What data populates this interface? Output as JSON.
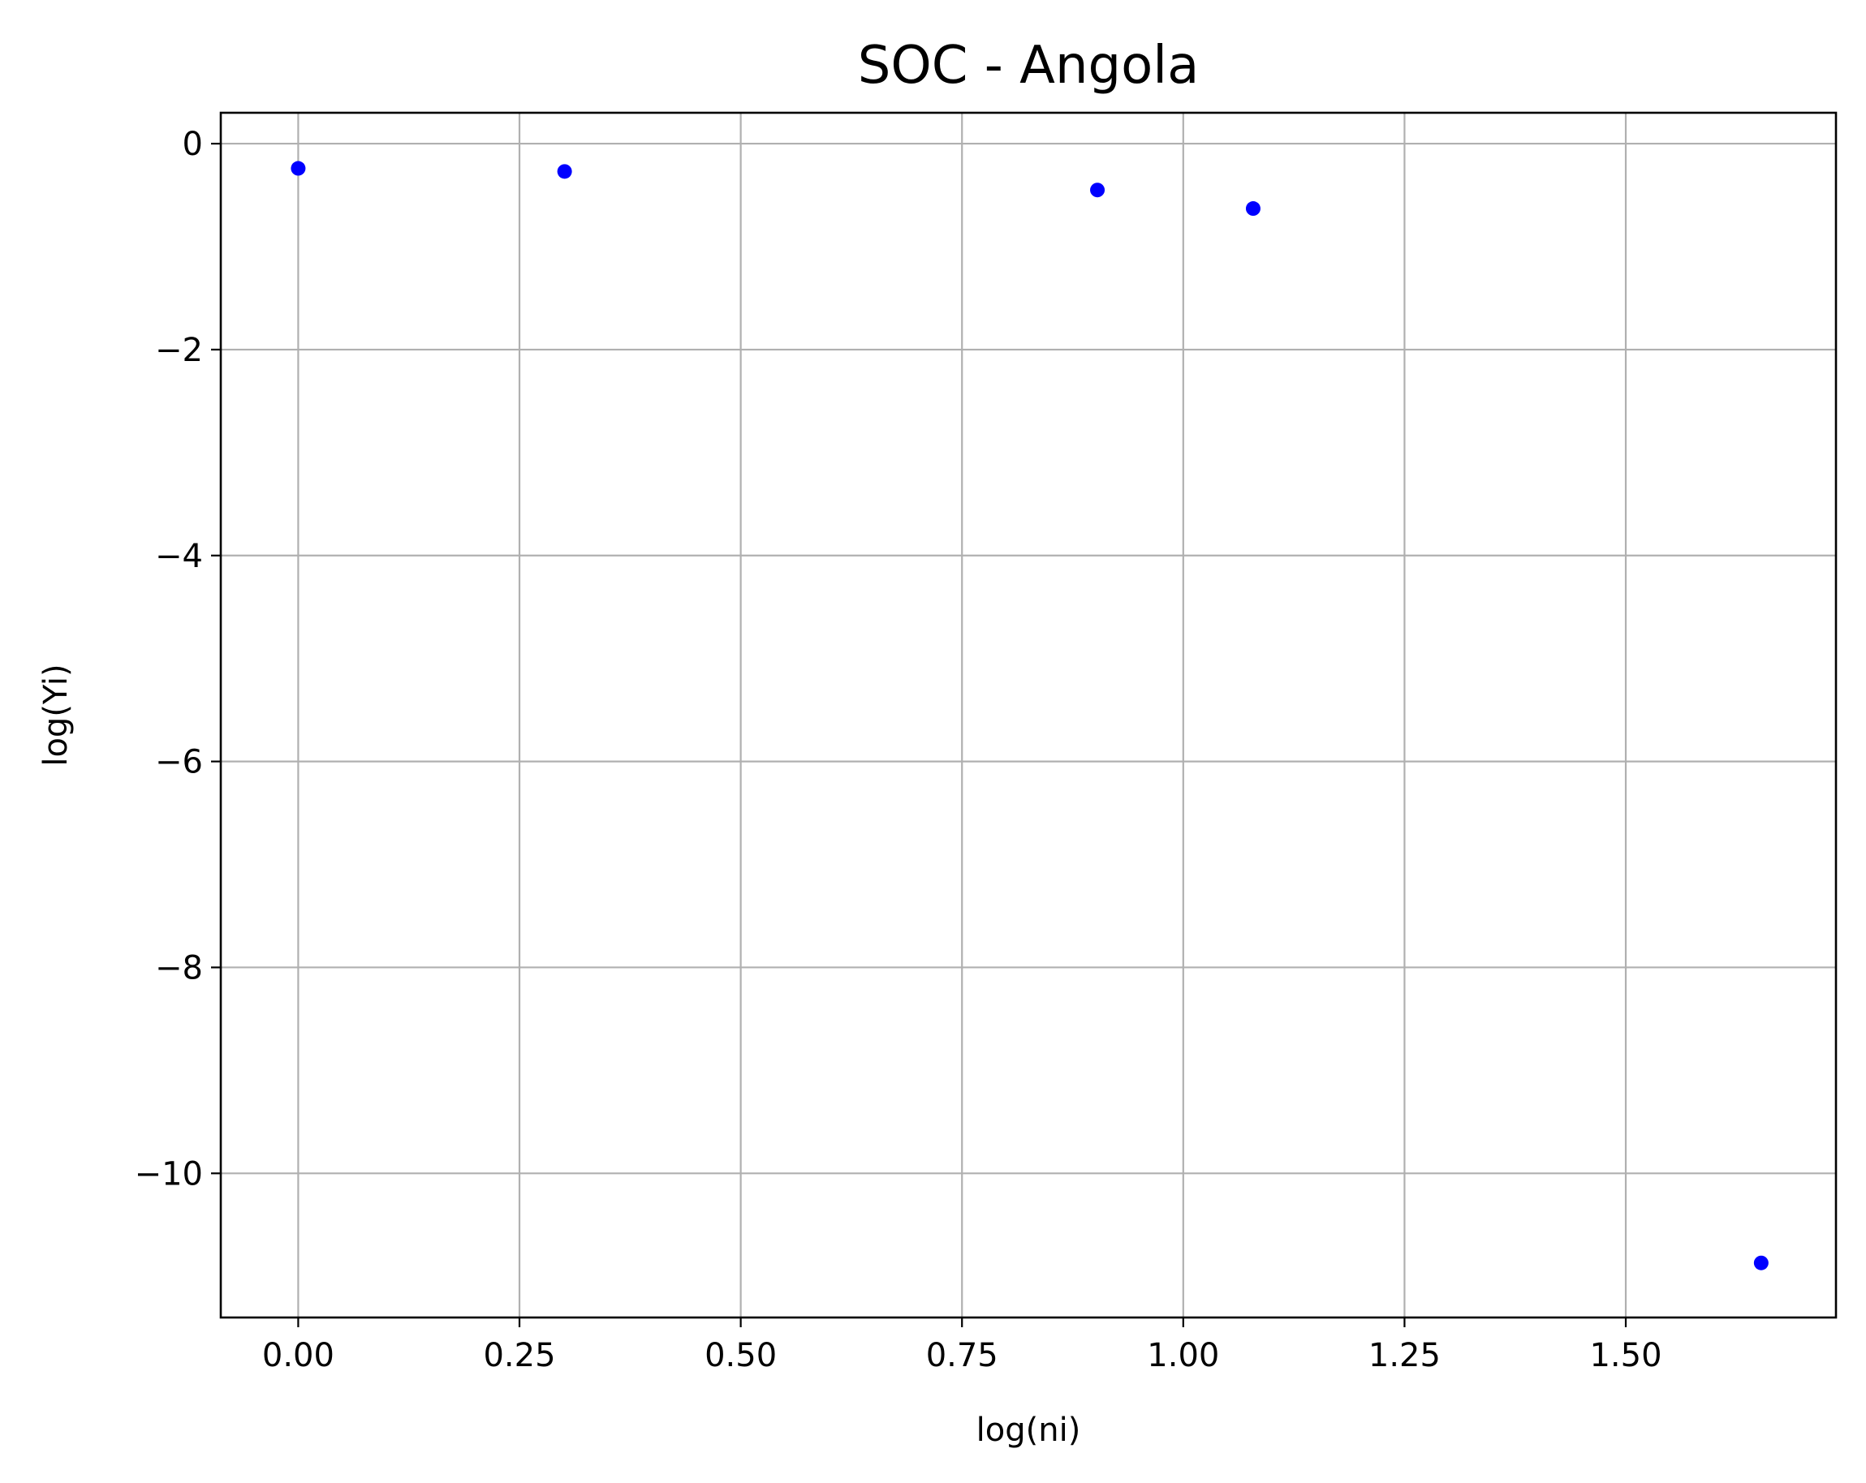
{
  "chart_data": {
    "type": "scatter",
    "title": "SOC - Angola",
    "xlabel": "log(ni)",
    "ylabel": "log(Yi)",
    "xlim": [
      -0.0875,
      1.7375
    ],
    "ylim": [
      -11.4,
      0.3
    ],
    "xticks": [
      0.0,
      0.25,
      0.5,
      0.75,
      1.0,
      1.25,
      1.5
    ],
    "xtick_labels": [
      "0.00",
      "0.25",
      "0.50",
      "0.75",
      "1.00",
      "1.25",
      "1.50"
    ],
    "yticks": [
      0,
      -2,
      -4,
      -6,
      -8,
      -10
    ],
    "ytick_labels": [
      "0",
      "−2",
      "−4",
      "−6",
      "−8",
      "−10"
    ],
    "grid": true,
    "series": [
      {
        "color": "#0000ff",
        "x": [
          0.0,
          0.301,
          0.903,
          1.079,
          1.653
        ],
        "y": [
          -0.24,
          -0.27,
          -0.45,
          -0.63,
          -10.87
        ]
      }
    ]
  }
}
